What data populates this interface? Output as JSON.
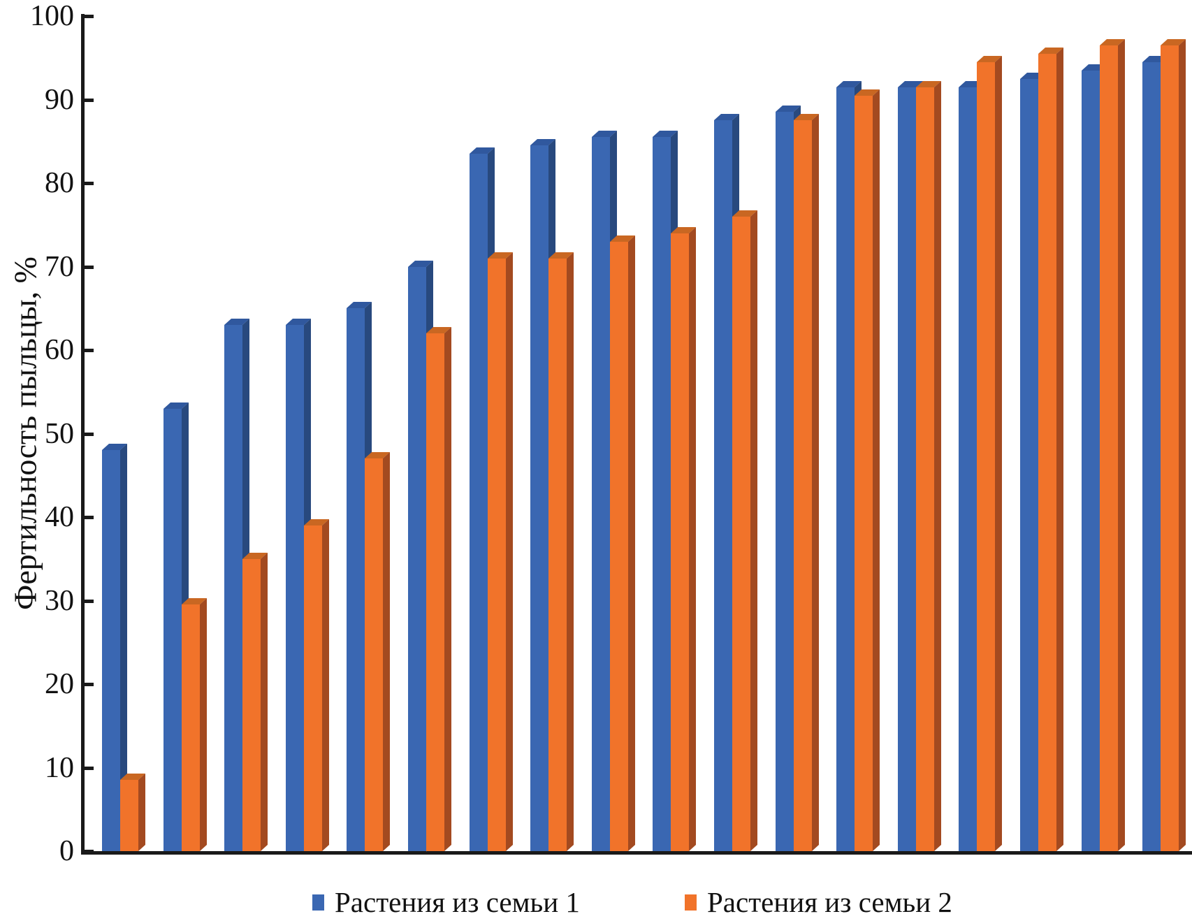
{
  "figure": {
    "background": "#ffffff",
    "axis_color": "#1a1a1a"
  },
  "chart_data": {
    "type": "bar",
    "title": "",
    "xlabel": "",
    "ylabel": "Фертильность пыльцы, %",
    "ylim": [
      0,
      100
    ],
    "yticks": [
      "0",
      "10",
      "20",
      "30",
      "40",
      "50",
      "60",
      "70",
      "80",
      "90",
      "100"
    ],
    "grid": false,
    "n_groups": 18,
    "x_tick_labels": [],
    "legend_position": "bottom",
    "series": [
      {
        "name": "Растения из семьи 1",
        "color": "#3A67B2",
        "color_top": "#30589E",
        "color_side": "#28497E",
        "values": [
          48,
          53,
          63,
          63,
          65,
          70,
          83.5,
          84.5,
          85.5,
          85.5,
          87.5,
          88.5,
          91.5,
          91.5,
          91.5,
          92.5,
          93.5,
          94.5
        ]
      },
      {
        "name": "Растения из семьи 2",
        "color": "#F1732A",
        "color_top": "#C96722",
        "color_side": "#A34A20",
        "values": [
          8.5,
          29.5,
          35,
          39,
          47,
          62,
          71,
          71,
          73,
          74,
          76,
          87.5,
          90.5,
          91.5,
          94.5,
          95.5,
          96.5,
          96.5
        ]
      }
    ]
  }
}
